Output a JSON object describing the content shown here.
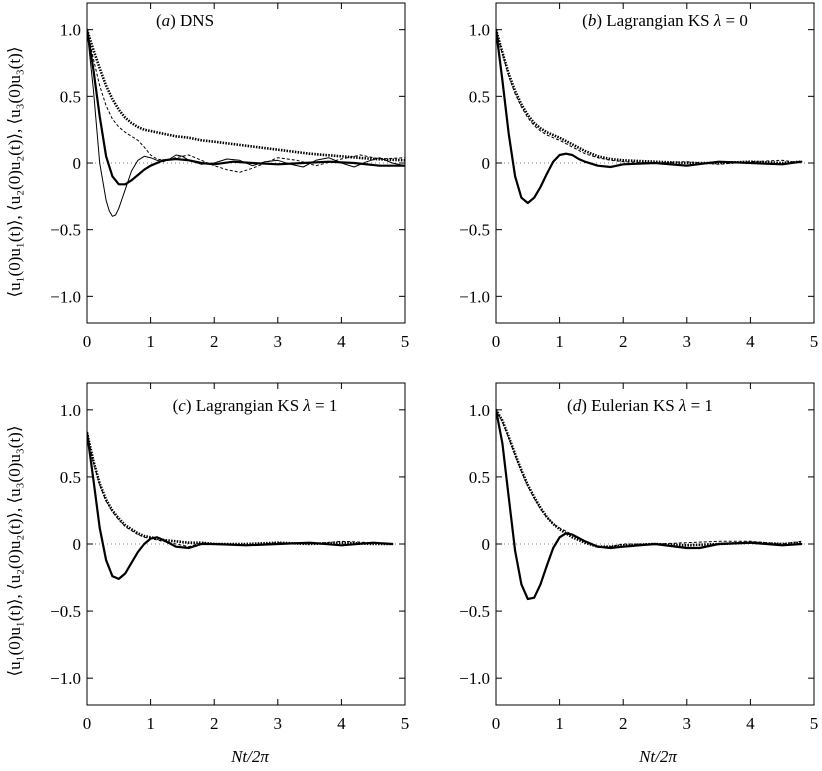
{
  "figure": {
    "ylabel": "⟨u₁(0)u₁(t)⟩, ⟨u₂(0)u₂(t)⟩, ⟨u₃(0)u₃(t)⟩",
    "xlabel": "Nt/2π"
  },
  "chart_data": [
    {
      "type": "line",
      "panel_label": "(a) DNS",
      "xlim": [
        0,
        5
      ],
      "ylim": [
        -1.2,
        1.2
      ],
      "xticks": [
        0,
        1,
        2,
        3,
        4,
        5
      ],
      "yticks": [
        1.0,
        0.5,
        0,
        -0.5,
        -1.0
      ],
      "xtick_labels": [
        "0",
        "1",
        "2",
        "3",
        "4",
        "5"
      ],
      "ytick_labels": [
        "1.0",
        "0.5",
        "0",
        "−0.5",
        "−1.0"
      ],
      "grid": false,
      "series": [
        {
          "style": "dotted-thick",
          "x": [
            0,
            0.1,
            0.2,
            0.3,
            0.4,
            0.5,
            0.6,
            0.7,
            0.8,
            0.9,
            1.0,
            1.2,
            1.4,
            1.6,
            1.8,
            2.0,
            2.5,
            3.0,
            3.5,
            4.0,
            4.5,
            5.0
          ],
          "y": [
            1.0,
            0.85,
            0.71,
            0.58,
            0.48,
            0.4,
            0.34,
            0.3,
            0.27,
            0.25,
            0.24,
            0.22,
            0.2,
            0.19,
            0.17,
            0.16,
            0.13,
            0.1,
            0.07,
            0.05,
            0.03,
            0.02
          ]
        },
        {
          "style": "dashed-thin",
          "x": [
            0,
            0.1,
            0.2,
            0.3,
            0.4,
            0.5,
            0.6,
            0.7,
            0.8,
            0.9,
            1.0,
            1.1,
            1.2,
            1.4,
            1.6,
            1.8,
            2.0,
            2.2,
            2.4,
            2.6,
            2.8,
            3.0,
            3.3,
            3.6,
            4.0,
            4.3,
            4.6,
            5.0
          ],
          "y": [
            1.0,
            0.78,
            0.58,
            0.43,
            0.33,
            0.27,
            0.23,
            0.2,
            0.17,
            0.12,
            0.06,
            0.03,
            0.02,
            0.04,
            0.06,
            0.02,
            -0.02,
            -0.05,
            -0.07,
            -0.04,
            0.0,
            0.04,
            0.02,
            -0.02,
            0.03,
            0.06,
            0.03,
            0.04
          ]
        },
        {
          "style": "solid-medium",
          "x": [
            0,
            0.1,
            0.2,
            0.3,
            0.4,
            0.5,
            0.6,
            0.7,
            0.8,
            0.9,
            1.0,
            1.1,
            1.2,
            1.4,
            1.6,
            1.8,
            2.0,
            2.3,
            2.6,
            3.0,
            3.4,
            3.8,
            4.2,
            4.6,
            5.0
          ],
          "y": [
            1.0,
            0.7,
            0.35,
            0.05,
            -0.1,
            -0.16,
            -0.16,
            -0.13,
            -0.09,
            -0.05,
            -0.02,
            0.0,
            0.02,
            0.03,
            0.02,
            0.0,
            -0.01,
            0.01,
            0.0,
            -0.01,
            0.0,
            0.01,
            0.0,
            -0.02,
            -0.02
          ]
        },
        {
          "style": "solid-thin",
          "x": [
            0,
            0.1,
            0.2,
            0.3,
            0.35,
            0.4,
            0.45,
            0.5,
            0.55,
            0.6,
            0.7,
            0.8,
            0.9,
            1.0,
            1.1,
            1.2,
            1.3,
            1.4,
            1.5,
            1.6,
            1.8,
            2.0,
            2.2,
            2.4,
            2.6,
            2.8,
            3.0,
            3.2,
            3.4,
            3.6,
            3.8,
            4.0,
            4.2,
            4.4,
            4.6,
            4.8,
            5.0
          ],
          "y": [
            1.0,
            0.55,
            0.0,
            -0.28,
            -0.36,
            -0.4,
            -0.39,
            -0.34,
            -0.27,
            -0.2,
            -0.06,
            0.02,
            0.05,
            0.04,
            0.02,
            0.01,
            0.03,
            0.06,
            0.05,
            0.02,
            -0.01,
            0.0,
            0.03,
            0.02,
            -0.02,
            0.01,
            0.02,
            -0.01,
            -0.03,
            0.02,
            0.04,
            0.0,
            -0.03,
            0.01,
            0.04,
            0.0,
            -0.02
          ]
        }
      ]
    },
    {
      "type": "line",
      "panel_label": "(b) Lagrangian KS λ = 0",
      "xlim": [
        0,
        5
      ],
      "ylim": [
        -1.2,
        1.2
      ],
      "xticks": [
        0,
        1,
        2,
        3,
        4,
        5
      ],
      "yticks": [
        1.0,
        0.5,
        0,
        -0.5,
        -1.0
      ],
      "xtick_labels": [
        "0",
        "1",
        "2",
        "3",
        "4",
        "5"
      ],
      "ytick_labels": [
        "1.0",
        "0.5",
        "0",
        "−0.5",
        "−1.0"
      ],
      "grid": false,
      "series": [
        {
          "style": "dotted-thick",
          "x": [
            0,
            0.1,
            0.2,
            0.3,
            0.4,
            0.5,
            0.6,
            0.7,
            0.8,
            0.9,
            1.0,
            1.2,
            1.4,
            1.6,
            1.8,
            2.0,
            2.5,
            3.0,
            3.5,
            4.0,
            4.5,
            4.8
          ],
          "y": [
            1.0,
            0.83,
            0.67,
            0.54,
            0.44,
            0.36,
            0.3,
            0.26,
            0.23,
            0.21,
            0.19,
            0.14,
            0.09,
            0.05,
            0.03,
            0.02,
            0.01,
            0.0,
            0.0,
            0.01,
            0.0,
            0.01
          ]
        },
        {
          "style": "dashed-thin",
          "x": [
            0,
            0.1,
            0.2,
            0.3,
            0.4,
            0.5,
            0.6,
            0.7,
            0.8,
            0.9,
            1.0,
            1.2,
            1.4,
            1.6,
            1.8,
            2.0,
            2.5,
            3.0,
            3.5,
            4.0,
            4.5,
            4.8
          ],
          "y": [
            1.0,
            0.82,
            0.65,
            0.52,
            0.42,
            0.34,
            0.28,
            0.24,
            0.21,
            0.19,
            0.17,
            0.12,
            0.07,
            0.04,
            0.02,
            0.01,
            0.0,
            0.01,
            -0.01,
            0.01,
            0.02,
            0.0
          ]
        },
        {
          "style": "solid-medium",
          "x": [
            0,
            0.1,
            0.2,
            0.3,
            0.4,
            0.5,
            0.6,
            0.7,
            0.8,
            0.9,
            1.0,
            1.1,
            1.2,
            1.3,
            1.4,
            1.6,
            1.8,
            2.0,
            2.5,
            3.0,
            3.5,
            4.0,
            4.5,
            4.8
          ],
          "y": [
            1.0,
            0.62,
            0.22,
            -0.1,
            -0.26,
            -0.3,
            -0.26,
            -0.18,
            -0.08,
            0.01,
            0.06,
            0.07,
            0.06,
            0.03,
            0.01,
            -0.02,
            -0.03,
            -0.01,
            0.0,
            -0.02,
            0.01,
            0.0,
            -0.01,
            0.01
          ]
        }
      ]
    },
    {
      "type": "line",
      "panel_label": "(c) Lagrangian KS λ = 1",
      "xlim": [
        0,
        5
      ],
      "ylim": [
        -1.2,
        1.2
      ],
      "xticks": [
        0,
        1,
        2,
        3,
        4,
        5
      ],
      "yticks": [
        1.0,
        0.5,
        0,
        -0.5,
        -1.0
      ],
      "xtick_labels": [
        "0",
        "1",
        "2",
        "3",
        "4",
        "5"
      ],
      "ytick_labels": [
        "1.0",
        "0.5",
        "0",
        "−0.5",
        "−1.0"
      ],
      "grid": false,
      "series": [
        {
          "style": "dotted-thick",
          "x": [
            0,
            0.1,
            0.2,
            0.3,
            0.4,
            0.5,
            0.6,
            0.7,
            0.8,
            0.9,
            1.0,
            1.2,
            1.4,
            1.6,
            1.8,
            2.0,
            2.5,
            3.0,
            3.5,
            4.0,
            4.5,
            4.8
          ],
          "y": [
            0.83,
            0.62,
            0.45,
            0.33,
            0.25,
            0.19,
            0.14,
            0.11,
            0.08,
            0.06,
            0.05,
            0.03,
            0.02,
            0.01,
            0.01,
            0.0,
            0.0,
            0.01,
            0.0,
            0.01,
            0.0,
            0.0
          ]
        },
        {
          "style": "dashed-thin",
          "x": [
            0,
            0.1,
            0.2,
            0.3,
            0.4,
            0.5,
            0.6,
            0.7,
            0.8,
            0.9,
            1.0,
            1.2,
            1.4,
            1.6,
            1.8,
            2.0,
            2.5,
            3.0,
            3.5,
            4.0,
            4.5,
            4.8
          ],
          "y": [
            0.83,
            0.61,
            0.44,
            0.32,
            0.24,
            0.18,
            0.13,
            0.1,
            0.07,
            0.05,
            0.04,
            0.02,
            0.0,
            -0.02,
            0.01,
            0.0,
            -0.01,
            0.01,
            0.0,
            0.02,
            0.01,
            0.0
          ]
        },
        {
          "style": "solid-medium",
          "x": [
            0,
            0.1,
            0.2,
            0.3,
            0.4,
            0.5,
            0.6,
            0.7,
            0.8,
            0.9,
            1.0,
            1.1,
            1.2,
            1.4,
            1.6,
            1.8,
            2.0,
            2.5,
            3.0,
            3.5,
            4.0,
            4.5,
            4.8
          ],
          "y": [
            0.83,
            0.48,
            0.12,
            -0.12,
            -0.24,
            -0.26,
            -0.22,
            -0.14,
            -0.06,
            0.0,
            0.04,
            0.05,
            0.03,
            -0.02,
            -0.03,
            0.0,
            0.0,
            -0.01,
            0.0,
            0.01,
            -0.01,
            0.01,
            0.0
          ]
        }
      ]
    },
    {
      "type": "line",
      "panel_label": "(d) Eulerian KS λ = 1",
      "xlim": [
        0,
        5
      ],
      "ylim": [
        -1.2,
        1.2
      ],
      "xticks": [
        0,
        1,
        2,
        3,
        4,
        5
      ],
      "yticks": [
        1.0,
        0.5,
        0,
        -0.5,
        -1.0
      ],
      "xtick_labels": [
        "0",
        "1",
        "2",
        "3",
        "4",
        "5"
      ],
      "ytick_labels": [
        "1.0",
        "0.5",
        "0",
        "−0.5",
        "−1.0"
      ],
      "grid": false,
      "series": [
        {
          "style": "dotted-thick",
          "x": [
            0,
            0.1,
            0.2,
            0.3,
            0.4,
            0.5,
            0.6,
            0.7,
            0.8,
            0.9,
            1.0,
            1.2,
            1.4,
            1.6,
            1.8,
            2.0,
            2.5,
            3.0,
            3.5,
            4.0,
            4.5,
            4.8
          ],
          "y": [
            1.0,
            0.92,
            0.8,
            0.67,
            0.55,
            0.44,
            0.35,
            0.27,
            0.2,
            0.15,
            0.11,
            0.05,
            0.01,
            -0.02,
            -0.02,
            -0.01,
            0.0,
            -0.01,
            0.0,
            0.01,
            0.0,
            0.01
          ]
        },
        {
          "style": "dashed-thin",
          "x": [
            0,
            0.1,
            0.2,
            0.3,
            0.4,
            0.5,
            0.6,
            0.7,
            0.8,
            0.9,
            1.0,
            1.2,
            1.4,
            1.6,
            1.8,
            2.0,
            2.5,
            3.0,
            3.5,
            4.0,
            4.5,
            4.8
          ],
          "y": [
            1.0,
            0.91,
            0.79,
            0.66,
            0.54,
            0.43,
            0.34,
            0.26,
            0.2,
            0.15,
            0.12,
            0.07,
            0.02,
            -0.02,
            -0.02,
            0.0,
            0.0,
            0.01,
            0.02,
            0.02,
            0.0,
            0.02
          ]
        },
        {
          "style": "solid-medium",
          "x": [
            0,
            0.1,
            0.2,
            0.3,
            0.4,
            0.5,
            0.6,
            0.7,
            0.8,
            0.9,
            1.0,
            1.1,
            1.2,
            1.4,
            1.6,
            1.8,
            2.0,
            2.5,
            3.0,
            3.2,
            3.5,
            4.0,
            4.5,
            4.8
          ],
          "y": [
            1.0,
            0.75,
            0.35,
            -0.05,
            -0.3,
            -0.41,
            -0.4,
            -0.3,
            -0.16,
            -0.03,
            0.05,
            0.08,
            0.07,
            0.02,
            -0.02,
            -0.03,
            -0.02,
            0.0,
            -0.03,
            -0.03,
            0.0,
            0.01,
            -0.01,
            0.0
          ]
        }
      ]
    }
  ]
}
